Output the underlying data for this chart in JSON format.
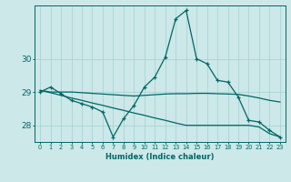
{
  "xlabel": "Humidex (Indice chaleur)",
  "x_values": [
    0,
    1,
    2,
    3,
    4,
    5,
    6,
    7,
    8,
    9,
    10,
    11,
    12,
    13,
    14,
    15,
    16,
    17,
    18,
    19,
    20,
    21,
    22,
    23
  ],
  "line_main_y": [
    29.0,
    29.15,
    28.95,
    28.75,
    28.65,
    28.55,
    28.4,
    27.65,
    28.2,
    28.6,
    29.15,
    29.45,
    30.05,
    31.2,
    31.45,
    30.0,
    29.85,
    29.35,
    29.3,
    28.85,
    28.15,
    28.1,
    27.85,
    27.65
  ],
  "line_flat_y": [
    29.05,
    29.0,
    29.0,
    29.0,
    28.98,
    28.96,
    28.94,
    28.92,
    28.9,
    28.88,
    28.9,
    28.92,
    28.94,
    28.95,
    28.95,
    28.96,
    28.96,
    28.95,
    28.94,
    28.93,
    28.88,
    28.82,
    28.75,
    28.7
  ],
  "line_decline_y": [
    29.05,
    28.98,
    28.9,
    28.82,
    28.75,
    28.67,
    28.6,
    28.52,
    28.45,
    28.37,
    28.3,
    28.22,
    28.15,
    28.07,
    28.0,
    28.0,
    28.0,
    28.0,
    28.0,
    28.0,
    28.0,
    27.95,
    27.75,
    27.65
  ],
  "background_color": "#cce8e8",
  "grid_color": "#aad4d4",
  "line_color": "#006666",
  "ylim_min": 27.5,
  "ylim_max": 31.6,
  "yticks": [
    28,
    29,
    30
  ],
  "xlim_min": -0.5,
  "xlim_max": 23.5
}
